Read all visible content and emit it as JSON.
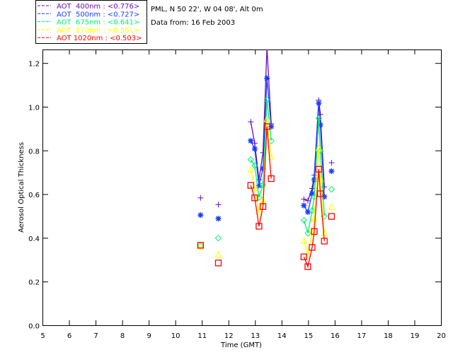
{
  "chart_data": {
    "type": "line",
    "header": [
      "PML, N 50 22', W 04 08', Alt 0m",
      "Data from: 16 Feb 2003"
    ],
    "xlabel": "Time (GMT)",
    "ylabel": "Aerosol Optical Thickness",
    "xlim": [
      5,
      20
    ],
    "ylim": [
      0,
      1.262
    ],
    "xticks": [
      "5",
      "6",
      "7",
      "8",
      "9",
      "10",
      "11",
      "12",
      "13",
      "14",
      "15",
      "16",
      "17",
      "18",
      "19",
      "20"
    ],
    "yticks": [
      "0.0",
      "0.2",
      "0.4",
      "0.6",
      "0.8",
      "1.0",
      "1.2"
    ],
    "legend_position": "top-left-outside",
    "x": [
      10.95,
      11.62,
      12.84,
      12.99,
      13.15,
      13.3,
      13.45,
      13.61,
      14.84,
      14.99,
      15.15,
      15.23,
      15.4,
      15.46,
      15.61,
      15.88
    ],
    "series": [
      {
        "name": "AOT  400nm : <0.776>",
        "color": "#6a0dbb",
        "marker": "plus",
        "values": [
          0.583,
          0.552,
          0.931,
          0.833,
          0.666,
          0.79,
          1.27,
          0.922,
          0.577,
          0.57,
          0.626,
          0.687,
          1.03,
          0.965,
          0.633,
          0.744
        ]
      },
      {
        "name": "AOT  500nm : <0.727>",
        "color": "#1a3cff",
        "marker": "asterisk",
        "values": [
          0.504,
          0.488,
          0.844,
          0.807,
          0.639,
          0.718,
          1.13,
          0.909,
          0.548,
          0.518,
          0.602,
          0.666,
          1.016,
          0.917,
          0.588,
          0.705
        ]
      },
      {
        "name": "AOT  675nm : <0.641>",
        "color": "#00f070",
        "marker": "diamond",
        "values": [
          0.365,
          0.399,
          0.758,
          0.731,
          0.585,
          0.642,
          1.032,
          0.844,
          0.48,
          0.421,
          0.525,
          0.588,
          0.947,
          0.798,
          0.499,
          0.622
        ]
      },
      {
        "name": "AOT  870nm : <0.561>",
        "color": "#ffff00",
        "marker": "triangle",
        "values": [
          0.36,
          0.324,
          0.712,
          0.629,
          0.52,
          0.572,
          0.944,
          0.771,
          0.388,
          0.326,
          0.423,
          0.489,
          0.812,
          0.671,
          0.423,
          0.543
        ]
      },
      {
        "name": "AOT 1020nm : <0.503>",
        "color": "#ff0000",
        "marker": "square",
        "values": [
          0.366,
          0.285,
          0.64,
          0.583,
          0.453,
          0.543,
          0.909,
          0.671,
          0.313,
          0.268,
          0.356,
          0.429,
          0.714,
          0.602,
          0.385,
          0.498
        ]
      }
    ]
  }
}
